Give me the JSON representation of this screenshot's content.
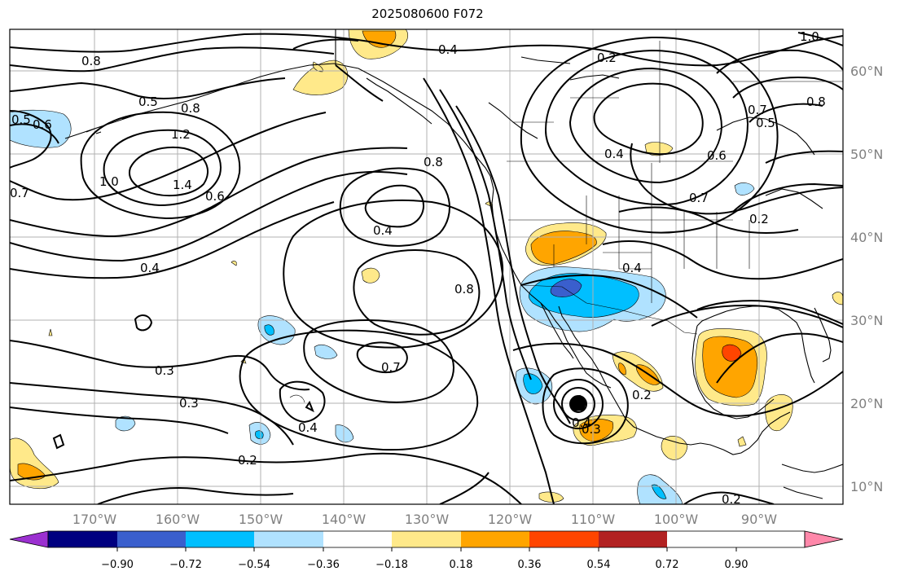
{
  "title": "2025080600 F072",
  "longitude_labels": [
    "170°W",
    "160°W",
    "150°W",
    "140°W",
    "130°W",
    "120°W",
    "110°W",
    "100°W",
    "90°W"
  ],
  "latitude_labels": [
    "60°N",
    "50°N",
    "40°N",
    "30°N",
    "20°N",
    "10°N"
  ],
  "colorbar": {
    "ticks": [
      "−0.90",
      "−0.72",
      "−0.54",
      "−0.36",
      "−0.18",
      "0.18",
      "0.36",
      "0.54",
      "0.72",
      "0.90"
    ],
    "colors": [
      "#9b30d0",
      "#000080",
      "#3a5fcd",
      "#00bfff",
      "#b0e2ff",
      "#ffffff",
      "#ffe98a",
      "#ffa500",
      "#ff4500",
      "#b22222",
      "#ff88aa"
    ]
  },
  "contour_labels": [
    {
      "text": "0.8"
    },
    {
      "text": "0.4"
    },
    {
      "text": "0.2"
    },
    {
      "text": "1.0"
    },
    {
      "text": "0.5"
    },
    {
      "text": "0.6"
    },
    {
      "text": "1.2"
    },
    {
      "text": "1.4"
    },
    {
      "text": "1.0"
    },
    {
      "text": "0.7"
    },
    {
      "text": "0.6"
    },
    {
      "text": "0.8"
    },
    {
      "text": "0.4"
    },
    {
      "text": "0.4"
    },
    {
      "text": "0.8"
    },
    {
      "text": "0.4"
    },
    {
      "text": "0.7"
    },
    {
      "text": "0.5"
    },
    {
      "text": "0.8"
    },
    {
      "text": "0.6"
    },
    {
      "text": "0.7"
    },
    {
      "text": "0.2"
    },
    {
      "text": "0.4"
    },
    {
      "text": "0.3"
    },
    {
      "text": "0.3"
    },
    {
      "text": "0.4"
    },
    {
      "text": "0.7"
    },
    {
      "text": "0.2"
    },
    {
      "text": "0.4"
    },
    {
      "text": "0.3"
    },
    {
      "text": "0.2"
    },
    {
      "text": "0.2"
    },
    {
      "text": "0.8"
    },
    {
      "text": "0.5"
    }
  ]
}
